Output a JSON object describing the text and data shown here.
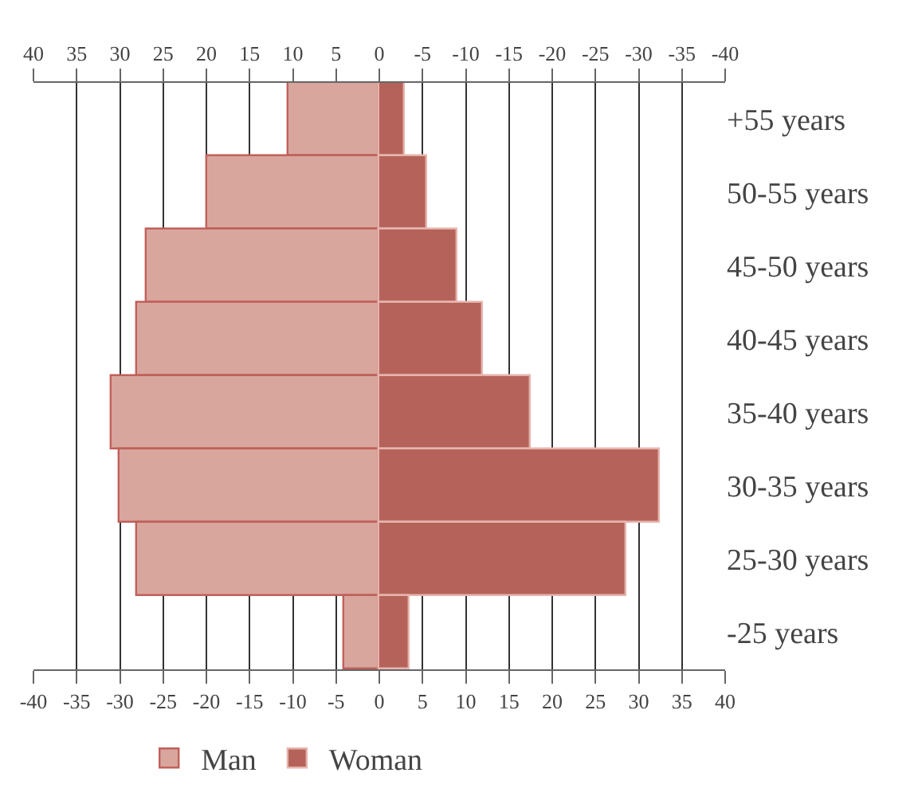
{
  "chart_data": {
    "type": "bar",
    "orientation": "horizontal",
    "categories": [
      "+55 years",
      "50-55 years",
      "45-50 years",
      "40-45 years",
      "35-40 years",
      "30-35 years",
      "25-30 years",
      "-25 years"
    ],
    "series": [
      {
        "name": "Man",
        "color": "#d8a69d",
        "values": [
          -10.5,
          -20,
          -27,
          -28,
          -31,
          -30,
          -28,
          -4
        ]
      },
      {
        "name": "Woman",
        "color": "#b5635a",
        "values": [
          3,
          5.5,
          9,
          12,
          17.5,
          32.5,
          28.5,
          3.5
        ]
      }
    ],
    "xlim": [
      -40,
      40
    ],
    "xticks": [
      -40,
      -35,
      -30,
      -25,
      -20,
      -15,
      -10,
      -5,
      0,
      5,
      10,
      15,
      20,
      25,
      30,
      35,
      40
    ],
    "x2lim": [
      40,
      -40
    ],
    "x2ticks": [
      40,
      35,
      30,
      25,
      20,
      15,
      10,
      5,
      0,
      -5,
      -10,
      -15,
      -20,
      -25,
      -30,
      -35,
      -40
    ],
    "grid": "x",
    "legend": "bottom",
    "stacked": true
  }
}
